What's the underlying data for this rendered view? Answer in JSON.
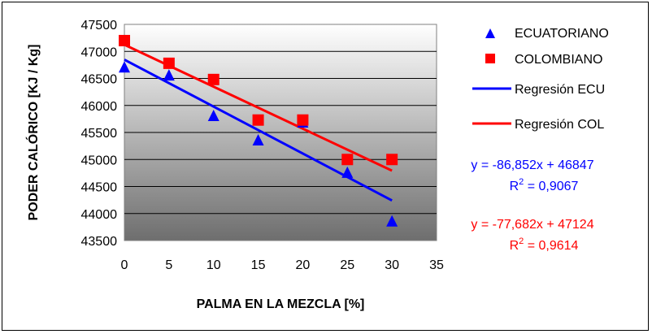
{
  "chart_data": {
    "type": "scatter",
    "xlabel": "PALMA EN LA MEZCLA [%]",
    "ylabel": "PODER CALÓRICO [KJ / Kg]",
    "xlim": [
      0,
      35
    ],
    "ylim": [
      43500,
      47500
    ],
    "x_ticks": [
      "0",
      "5",
      "10",
      "15",
      "20",
      "25",
      "30",
      "35"
    ],
    "y_ticks": [
      "47500",
      "47000",
      "46500",
      "46000",
      "45500",
      "45000",
      "44500",
      "44000",
      "43500"
    ],
    "grid": "horizontal",
    "legend_position": "right",
    "series": [
      {
        "name": "ECUATORIANO",
        "marker": "triangle",
        "color": "#0000ff",
        "x": [
          0,
          5,
          10,
          15,
          20,
          25,
          30
        ],
        "y": [
          46700,
          46550,
          45800,
          45350,
          45680,
          44750,
          43850
        ]
      },
      {
        "name": "COLOMBIANO",
        "marker": "square",
        "color": "#ff0000",
        "x": [
          0,
          5,
          10,
          15,
          20,
          25,
          30
        ],
        "y": [
          47200,
          46780,
          46480,
          45730,
          45730,
          45000,
          45000
        ]
      }
    ],
    "regressions": [
      {
        "name": "Regresión ECU",
        "color": "#0000ff",
        "slope": -86.852,
        "intercept": 46847,
        "x_range": [
          0,
          30
        ],
        "equation": "y = -86,852x + 46847",
        "r2_label": "R",
        "r2_sup": "2",
        "r2_value": " = 0,9067"
      },
      {
        "name": "Regresión COL",
        "color": "#ff0000",
        "slope": -77.682,
        "intercept": 47124,
        "x_range": [
          0,
          30
        ],
        "equation": "y = -77,682x + 47124",
        "r2_label": "R",
        "r2_sup": "2",
        "r2_value": " = 0,9614"
      }
    ]
  }
}
